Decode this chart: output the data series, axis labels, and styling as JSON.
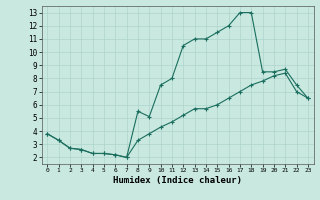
{
  "xlabel": "Humidex (Indice chaleur)",
  "bg_color": "#c8e8e0",
  "grid_color": "#a8d0c8",
  "line_color": "#1a6e5e",
  "xlim": [
    -0.5,
    23.5
  ],
  "ylim": [
    1.5,
    13.5
  ],
  "xticks": [
    0,
    1,
    2,
    3,
    4,
    5,
    6,
    7,
    8,
    9,
    10,
    11,
    12,
    13,
    14,
    15,
    16,
    17,
    18,
    19,
    20,
    21,
    22,
    23
  ],
  "yticks": [
    2,
    3,
    4,
    5,
    6,
    7,
    8,
    9,
    10,
    11,
    12,
    13
  ],
  "line1_x": [
    0,
    1,
    2,
    3,
    4,
    5,
    6,
    7,
    8,
    9,
    10,
    11,
    12,
    13,
    14,
    15,
    16,
    17,
    18,
    19,
    20,
    21,
    22,
    23
  ],
  "line1_y": [
    3.8,
    3.3,
    2.7,
    2.6,
    2.3,
    2.3,
    2.2,
    2.0,
    5.5,
    5.1,
    7.5,
    8.0,
    10.5,
    11.0,
    11.0,
    11.5,
    12.0,
    13.0,
    13.0,
    8.5,
    8.5,
    8.7,
    7.5,
    6.5
  ],
  "line2_x": [
    0,
    1,
    2,
    3,
    4,
    5,
    6,
    7,
    8,
    9,
    10,
    11,
    12,
    13,
    14,
    15,
    16,
    17,
    18,
    19,
    20,
    21,
    22,
    23
  ],
  "line2_y": [
    3.8,
    3.3,
    2.7,
    2.6,
    2.3,
    2.3,
    2.2,
    2.0,
    3.3,
    3.8,
    4.3,
    4.7,
    5.2,
    5.7,
    5.7,
    6.0,
    6.5,
    7.0,
    7.5,
    7.8,
    8.2,
    8.4,
    7.0,
    6.5
  ]
}
